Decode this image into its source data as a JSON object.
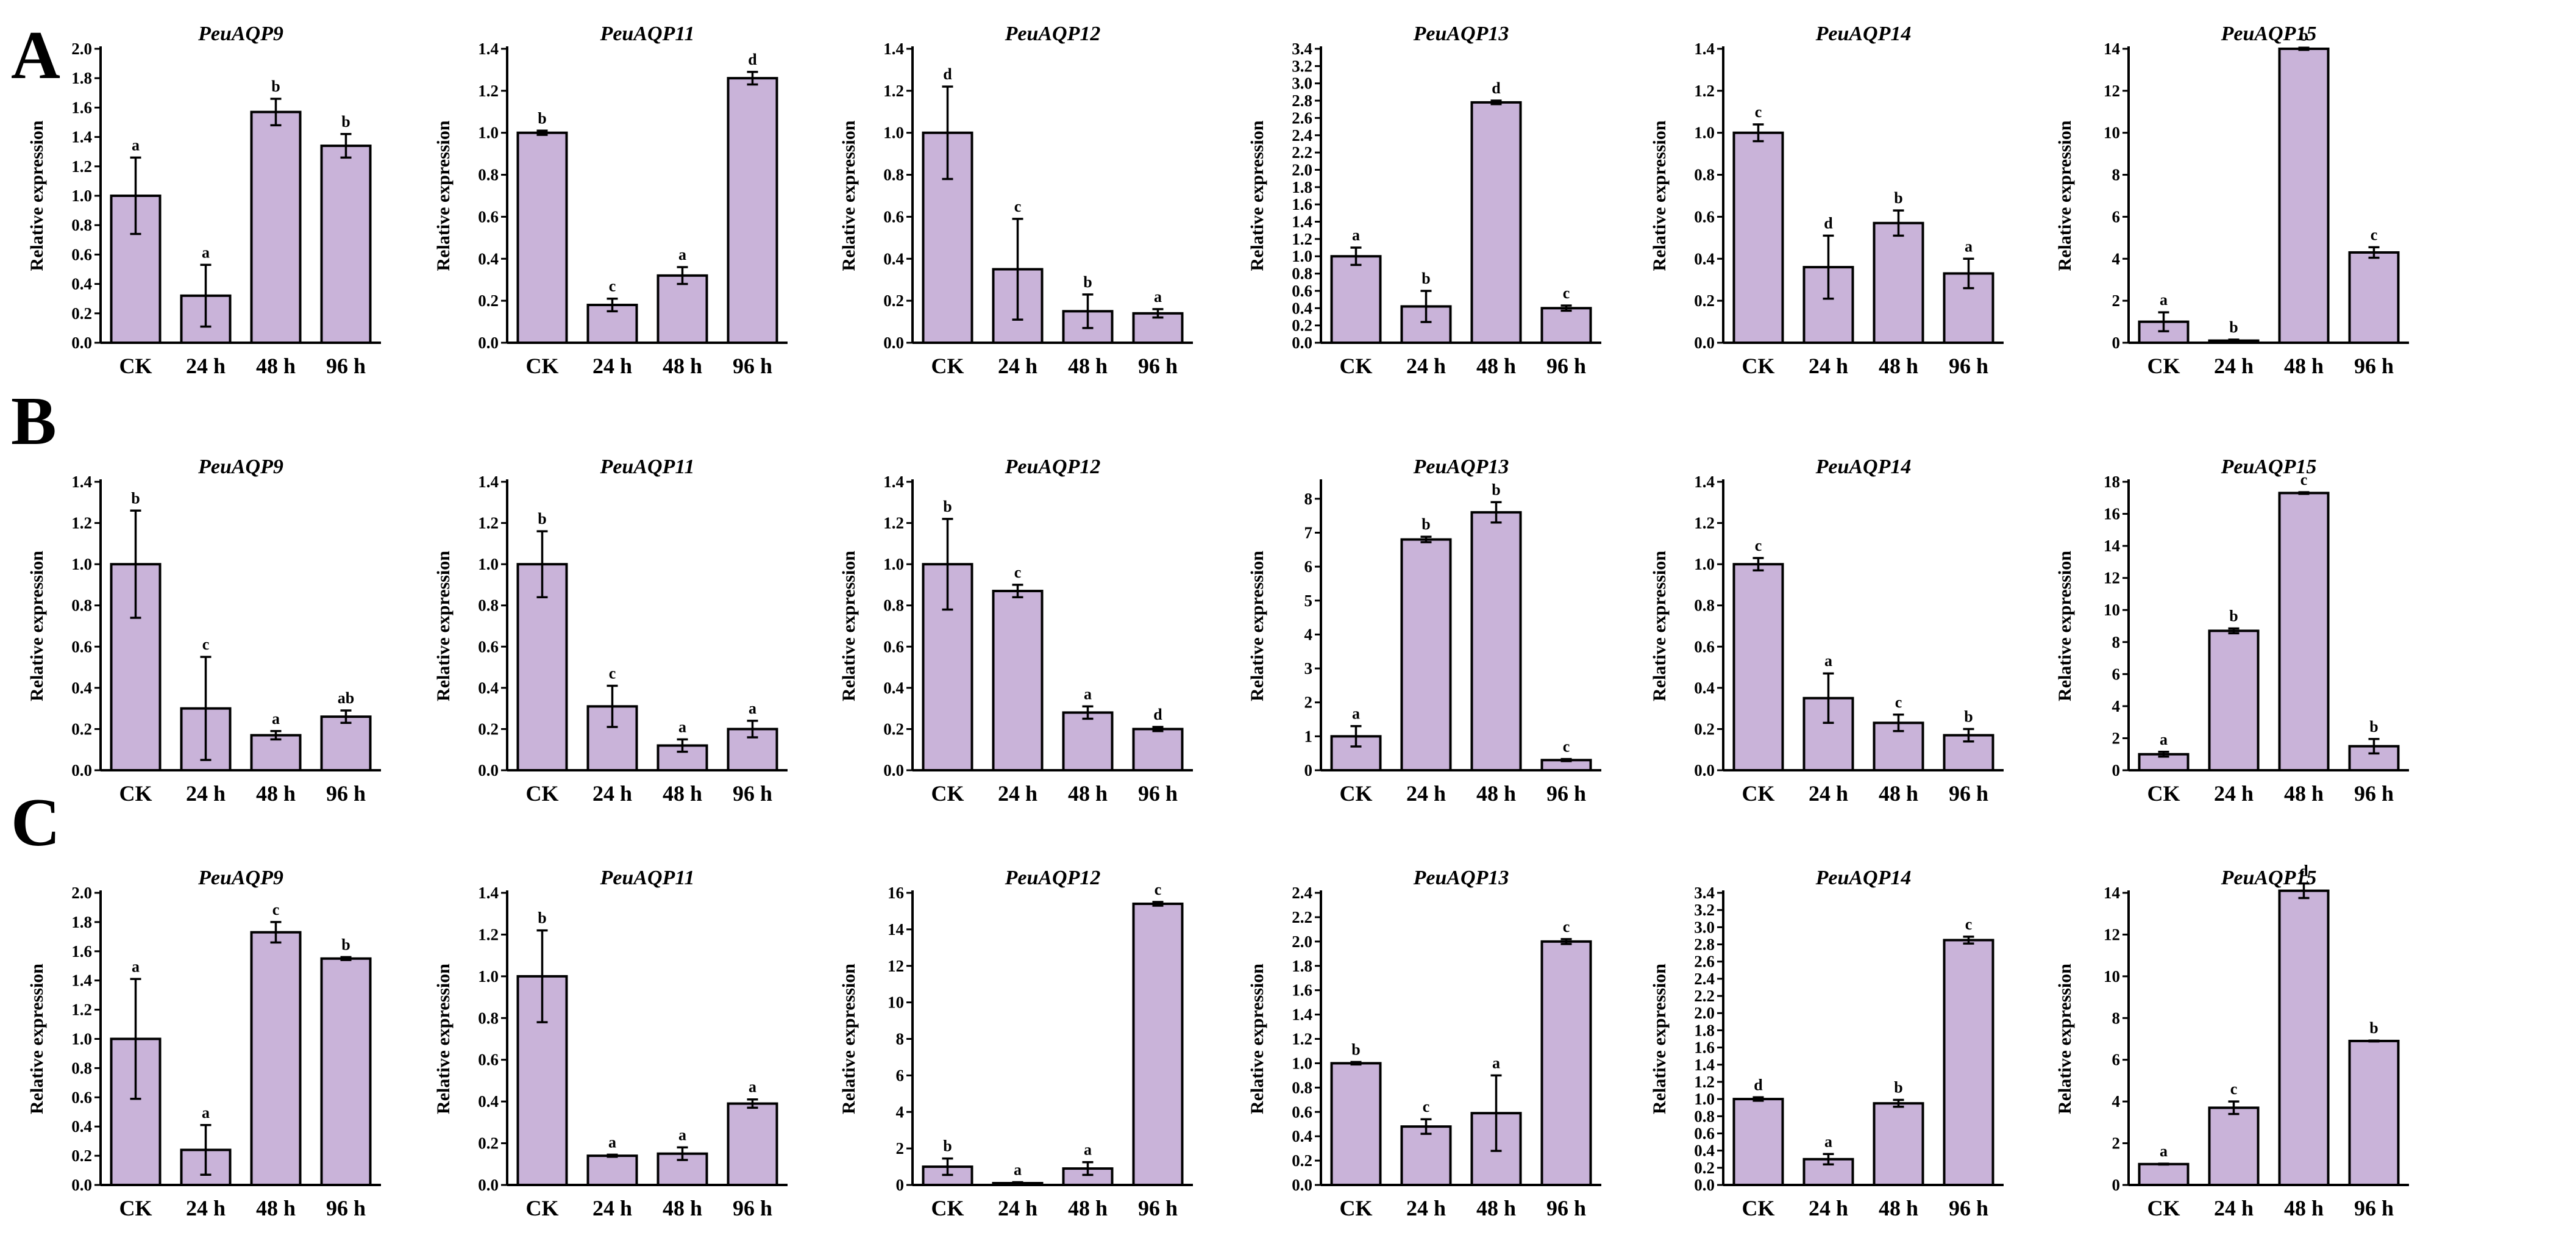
{
  "figure": {
    "panels": [
      "A",
      "B",
      "C"
    ],
    "bar_color": "#c9b3d9",
    "y_axis_label": "Relative expression",
    "categories": [
      "CK",
      "24 h",
      "48 h",
      "96 h"
    ]
  },
  "chart_data": [
    {
      "type": "bar",
      "row": 0,
      "col": 0,
      "panel": "A",
      "title": "PeuAQP9",
      "ylabel": "Relative expression",
      "categories": [
        "CK",
        "24 h",
        "48 h",
        "96 h"
      ],
      "values": [
        1.0,
        0.32,
        1.57,
        1.34
      ],
      "errors": [
        0.26,
        0.21,
        0.09,
        0.08
      ],
      "significance": [
        "a",
        "a",
        "b",
        "b"
      ],
      "ylim": [
        0,
        2.0
      ],
      "yticks": [
        0.0,
        0.2,
        0.4,
        0.6,
        0.8,
        1.0,
        1.2,
        1.4,
        1.6,
        1.8,
        2.0
      ]
    },
    {
      "type": "bar",
      "row": 0,
      "col": 1,
      "panel": "A",
      "title": "PeuAQP11",
      "ylabel": "Relative expression",
      "categories": [
        "CK",
        "24 h",
        "48 h",
        "96 h"
      ],
      "values": [
        1.0,
        0.18,
        0.32,
        1.26
      ],
      "errors": [
        0.01,
        0.03,
        0.04,
        0.03
      ],
      "significance": [
        "b",
        "c",
        "a",
        "d"
      ],
      "ylim": [
        0,
        1.4
      ],
      "yticks": [
        0.0,
        0.2,
        0.4,
        0.6,
        0.8,
        1.0,
        1.2,
        1.4
      ]
    },
    {
      "type": "bar",
      "row": 0,
      "col": 2,
      "panel": "A",
      "title": "PeuAQP12",
      "ylabel": "Relative expression",
      "categories": [
        "CK",
        "24 h",
        "48 h",
        "96 h"
      ],
      "values": [
        1.0,
        0.35,
        0.15,
        0.14
      ],
      "errors": [
        0.22,
        0.24,
        0.08,
        0.02
      ],
      "significance": [
        "d",
        "c",
        "b",
        "a"
      ],
      "ylim": [
        0,
        1.4
      ],
      "yticks": [
        0.0,
        0.2,
        0.4,
        0.6,
        0.8,
        1.0,
        1.2,
        1.4
      ]
    },
    {
      "type": "bar",
      "row": 0,
      "col": 3,
      "panel": "A",
      "title": "PeuAQP13",
      "ylabel": "Relative expression",
      "categories": [
        "CK",
        "24 h",
        "48 h",
        "96 h"
      ],
      "values": [
        1.0,
        0.42,
        2.78,
        0.4
      ],
      "errors": [
        0.1,
        0.18,
        0.02,
        0.03
      ],
      "significance": [
        "a",
        "b",
        "d",
        "c"
      ],
      "ylim": [
        0,
        3.4
      ],
      "yticks": [
        0.0,
        0.2,
        0.4,
        0.6,
        0.8,
        1.0,
        1.2,
        1.4,
        1.6,
        1.8,
        2.0,
        2.2,
        2.4,
        2.6,
        2.8,
        3.0,
        3.2,
        3.4
      ]
    },
    {
      "type": "bar",
      "row": 0,
      "col": 4,
      "panel": "A",
      "title": "PeuAQP14",
      "ylabel": "Relative expression",
      "categories": [
        "CK",
        "24 h",
        "48 h",
        "96 h"
      ],
      "values": [
        1.0,
        0.36,
        0.57,
        0.33
      ],
      "errors": [
        0.04,
        0.15,
        0.06,
        0.07
      ],
      "significance": [
        "c",
        "d",
        "b",
        "a"
      ],
      "ylim": [
        0,
        1.4
      ],
      "yticks": [
        0.0,
        0.2,
        0.4,
        0.6,
        0.8,
        1.0,
        1.2,
        1.4
      ]
    },
    {
      "type": "bar",
      "row": 0,
      "col": 5,
      "panel": "A",
      "title": "PeuAQP15",
      "ylabel": "Relative expression",
      "categories": [
        "CK",
        "24 h",
        "48 h",
        "96 h"
      ],
      "values": [
        1.0,
        0.1,
        14.0,
        4.3
      ],
      "errors": [
        0.45,
        0.05,
        0.05,
        0.25
      ],
      "significance": [
        "a",
        "b",
        "b",
        "c"
      ],
      "ylim": [
        0,
        14
      ],
      "yticks": [
        0,
        2,
        4,
        6,
        8,
        10,
        12,
        14
      ]
    },
    {
      "type": "bar",
      "row": 1,
      "col": 0,
      "panel": "B",
      "title": "PeuAQP9",
      "ylabel": "Relative expression",
      "categories": [
        "CK",
        "24 h",
        "48 h",
        "96 h"
      ],
      "values": [
        1.0,
        0.3,
        0.17,
        0.26
      ],
      "errors": [
        0.26,
        0.25,
        0.02,
        0.03
      ],
      "significance": [
        "b",
        "c",
        "a",
        "ab"
      ],
      "ylim": [
        0,
        1.4
      ],
      "yticks": [
        0.0,
        0.2,
        0.4,
        0.6,
        0.8,
        1.0,
        1.2,
        1.4
      ]
    },
    {
      "type": "bar",
      "row": 1,
      "col": 1,
      "panel": "B",
      "title": "PeuAQP11",
      "ylabel": "Relative expression",
      "categories": [
        "CK",
        "24 h",
        "48 h",
        "96 h"
      ],
      "values": [
        1.0,
        0.31,
        0.12,
        0.2
      ],
      "errors": [
        0.16,
        0.1,
        0.03,
        0.04
      ],
      "significance": [
        "b",
        "c",
        "a",
        "a"
      ],
      "ylim": [
        0,
        1.4
      ],
      "yticks": [
        0.0,
        0.2,
        0.4,
        0.6,
        0.8,
        1.0,
        1.2,
        1.4
      ]
    },
    {
      "type": "bar",
      "row": 1,
      "col": 2,
      "panel": "B",
      "title": "PeuAQP12",
      "ylabel": "Relative expression",
      "categories": [
        "CK",
        "24 h",
        "48 h",
        "96 h"
      ],
      "values": [
        1.0,
        0.87,
        0.28,
        0.2
      ],
      "errors": [
        0.22,
        0.03,
        0.03,
        0.01
      ],
      "significance": [
        "b",
        "c",
        "a",
        "d"
      ],
      "ylim": [
        0,
        1.4
      ],
      "yticks": [
        0.0,
        0.2,
        0.4,
        0.6,
        0.8,
        1.0,
        1.2,
        1.4
      ]
    },
    {
      "type": "bar",
      "row": 1,
      "col": 3,
      "panel": "B",
      "title": "PeuAQP13",
      "ylabel": "Relative expression",
      "categories": [
        "CK",
        "24 h",
        "48 h",
        "96 h"
      ],
      "values": [
        1.0,
        6.8,
        7.6,
        0.3
      ],
      "errors": [
        0.3,
        0.08,
        0.3,
        0.03
      ],
      "significance": [
        "a",
        "b",
        "b",
        "c"
      ],
      "ylim": [
        0,
        8.5
      ],
      "yticks": [
        0,
        1,
        2,
        3,
        4,
        5,
        6,
        7,
        8
      ]
    },
    {
      "type": "bar",
      "row": 1,
      "col": 4,
      "panel": "B",
      "title": "PeuAQP14",
      "ylabel": "Relative expression",
      "categories": [
        "CK",
        "24 h",
        "48 h",
        "96 h"
      ],
      "values": [
        1.0,
        0.35,
        0.23,
        0.17
      ],
      "errors": [
        0.03,
        0.12,
        0.04,
        0.03
      ],
      "significance": [
        "c",
        "a",
        "c",
        "b"
      ],
      "ylim": [
        0,
        1.4
      ],
      "yticks": [
        0.0,
        0.2,
        0.4,
        0.6,
        0.8,
        1.0,
        1.2,
        1.4
      ]
    },
    {
      "type": "bar",
      "row": 1,
      "col": 5,
      "panel": "B",
      "title": "PeuAQP15",
      "ylabel": "Relative expression",
      "categories": [
        "CK",
        "24 h",
        "48 h",
        "96 h"
      ],
      "values": [
        1.0,
        8.7,
        17.3,
        1.5
      ],
      "errors": [
        0.15,
        0.15,
        0.05,
        0.45
      ],
      "significance": [
        "a",
        "b",
        "c",
        "b"
      ],
      "ylim": [
        0,
        18
      ],
      "yticks": [
        0,
        2,
        4,
        6,
        8,
        10,
        12,
        14,
        16,
        18
      ]
    },
    {
      "type": "bar",
      "row": 2,
      "col": 0,
      "panel": "C",
      "title": "PeuAQP9",
      "ylabel": "Relative expression",
      "categories": [
        "CK",
        "24 h",
        "48 h",
        "96 h"
      ],
      "values": [
        1.0,
        0.24,
        1.73,
        1.55
      ],
      "errors": [
        0.41,
        0.17,
        0.07,
        0.01
      ],
      "significance": [
        "a",
        "a",
        "c",
        "b"
      ],
      "ylim": [
        0,
        2.0
      ],
      "yticks": [
        0.0,
        0.2,
        0.4,
        0.6,
        0.8,
        1.0,
        1.2,
        1.4,
        1.6,
        1.8,
        2.0
      ]
    },
    {
      "type": "bar",
      "row": 2,
      "col": 1,
      "panel": "C",
      "title": "PeuAQP11",
      "ylabel": "Relative expression",
      "categories": [
        "CK",
        "24 h",
        "48 h",
        "96 h"
      ],
      "values": [
        1.0,
        0.14,
        0.15,
        0.39
      ],
      "errors": [
        0.22,
        0.005,
        0.03,
        0.02
      ],
      "significance": [
        "b",
        "a",
        "a",
        "a"
      ],
      "ylim": [
        0,
        1.4
      ],
      "yticks": [
        0.0,
        0.2,
        0.4,
        0.6,
        0.8,
        1.0,
        1.2,
        1.4
      ]
    },
    {
      "type": "bar",
      "row": 2,
      "col": 2,
      "panel": "C",
      "title": "PeuAQP12",
      "ylabel": "Relative expression",
      "categories": [
        "CK",
        "24 h",
        "48 h",
        "96 h"
      ],
      "values": [
        1.0,
        0.1,
        0.9,
        15.4
      ],
      "errors": [
        0.45,
        0.05,
        0.35,
        0.1
      ],
      "significance": [
        "b",
        "a",
        "a",
        "c"
      ],
      "ylim": [
        0,
        16
      ],
      "yticks": [
        0,
        2,
        4,
        6,
        8,
        10,
        12,
        14,
        16
      ]
    },
    {
      "type": "bar",
      "row": 2,
      "col": 3,
      "panel": "C",
      "title": "PeuAQP13",
      "ylabel": "Relative expression",
      "categories": [
        "CK",
        "24 h",
        "48 h",
        "96 h"
      ],
      "values": [
        1.0,
        0.48,
        0.59,
        2.0
      ],
      "errors": [
        0.01,
        0.06,
        0.31,
        0.02
      ],
      "significance": [
        "b",
        "c",
        "a",
        "c"
      ],
      "ylim": [
        0,
        2.4
      ],
      "yticks": [
        0.0,
        0.2,
        0.4,
        0.6,
        0.8,
        1.0,
        1.2,
        1.4,
        1.6,
        1.8,
        2.0,
        2.2,
        2.4
      ]
    },
    {
      "type": "bar",
      "row": 2,
      "col": 4,
      "panel": "C",
      "title": "PeuAQP14",
      "ylabel": "Relative expression",
      "categories": [
        "CK",
        "24 h",
        "48 h",
        "96 h"
      ],
      "values": [
        1.0,
        0.3,
        0.95,
        2.85
      ],
      "errors": [
        0.02,
        0.06,
        0.04,
        0.04
      ],
      "significance": [
        "d",
        "a",
        "b",
        "c"
      ],
      "ylim": [
        0,
        3.4
      ],
      "yticks": [
        0.0,
        0.2,
        0.4,
        0.6,
        0.8,
        1.0,
        1.2,
        1.4,
        1.6,
        1.8,
        2.0,
        2.2,
        2.4,
        2.6,
        2.8,
        3.0,
        3.2,
        3.4
      ]
    },
    {
      "type": "bar",
      "row": 2,
      "col": 5,
      "panel": "C",
      "title": "PeuAQP15",
      "ylabel": "Relative expression",
      "categories": [
        "CK",
        "24 h",
        "48 h",
        "96 h"
      ],
      "values": [
        1.0,
        3.7,
        14.1,
        6.9
      ],
      "errors": [
        0.02,
        0.3,
        0.35,
        0.02
      ],
      "significance": [
        "a",
        "c",
        "d",
        "b"
      ],
      "ylim": [
        0,
        14
      ],
      "yticks": [
        0,
        2,
        4,
        6,
        8,
        10,
        12,
        14
      ]
    }
  ]
}
